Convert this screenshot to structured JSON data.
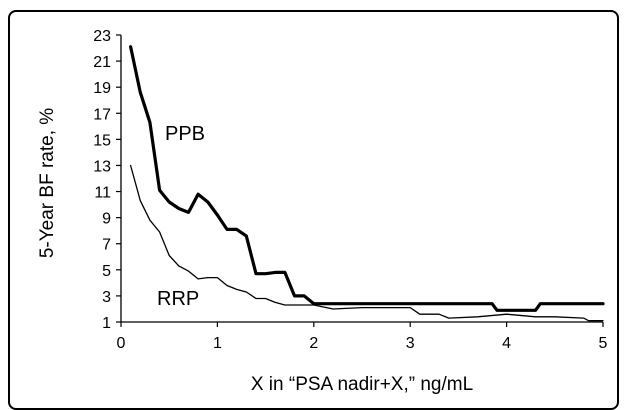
{
  "chart_data": {
    "type": "line",
    "title": "",
    "xlabel": "X in “PSA nadir+X,” ng/mL",
    "ylabel": "5-Year BF rate, %",
    "xlim": [
      0,
      5
    ],
    "ylim": [
      1,
      23
    ],
    "x_ticks": [
      "0",
      "1",
      "2",
      "3",
      "4",
      "5"
    ],
    "y_ticks": [
      "1",
      "3",
      "5",
      "7",
      "9",
      "11",
      "13",
      "15",
      "17",
      "19",
      "21",
      "23"
    ],
    "grid": false,
    "series": [
      {
        "name": "PPB",
        "style": "thick",
        "color": "#000000",
        "points": [
          [
            0.1,
            22.1
          ],
          [
            0.2,
            18.6
          ],
          [
            0.3,
            16.3
          ],
          [
            0.4,
            11.1
          ],
          [
            0.5,
            10.2
          ],
          [
            0.6,
            9.7
          ],
          [
            0.7,
            9.4
          ],
          [
            0.8,
            10.8
          ],
          [
            0.9,
            10.2
          ],
          [
            1.0,
            9.2
          ],
          [
            1.1,
            8.1
          ],
          [
            1.2,
            8.1
          ],
          [
            1.3,
            7.6
          ],
          [
            1.4,
            4.7
          ],
          [
            1.5,
            4.7
          ],
          [
            1.6,
            4.8
          ],
          [
            1.7,
            4.8
          ],
          [
            1.8,
            3.0
          ],
          [
            1.9,
            3.0
          ],
          [
            2.0,
            2.4
          ],
          [
            2.5,
            2.4
          ],
          [
            3.0,
            2.4
          ],
          [
            3.5,
            2.4
          ],
          [
            3.85,
            2.4
          ],
          [
            3.9,
            1.9
          ],
          [
            4.0,
            1.9
          ],
          [
            4.3,
            1.9
          ],
          [
            4.35,
            2.4
          ],
          [
            5.0,
            2.4
          ]
        ]
      },
      {
        "name": "RRP",
        "style": "thin",
        "color": "#000000",
        "points": [
          [
            0.1,
            13.0
          ],
          [
            0.2,
            10.3
          ],
          [
            0.3,
            8.8
          ],
          [
            0.4,
            7.9
          ],
          [
            0.5,
            6.1
          ],
          [
            0.6,
            5.3
          ],
          [
            0.7,
            4.9
          ],
          [
            0.8,
            4.3
          ],
          [
            0.9,
            4.4
          ],
          [
            1.0,
            4.4
          ],
          [
            1.1,
            3.8
          ],
          [
            1.2,
            3.5
          ],
          [
            1.3,
            3.3
          ],
          [
            1.4,
            2.8
          ],
          [
            1.5,
            2.8
          ],
          [
            1.6,
            2.5
          ],
          [
            1.7,
            2.3
          ],
          [
            1.9,
            2.3
          ],
          [
            2.0,
            2.3
          ],
          [
            2.2,
            2.0
          ],
          [
            2.5,
            2.1
          ],
          [
            3.0,
            2.1
          ],
          [
            3.1,
            1.6
          ],
          [
            3.3,
            1.6
          ],
          [
            3.4,
            1.3
          ],
          [
            3.7,
            1.4
          ],
          [
            4.0,
            1.6
          ],
          [
            4.3,
            1.4
          ],
          [
            4.5,
            1.4
          ],
          [
            4.8,
            1.3
          ],
          [
            4.85,
            1.1
          ],
          [
            5.0,
            1.1
          ]
        ]
      }
    ]
  }
}
